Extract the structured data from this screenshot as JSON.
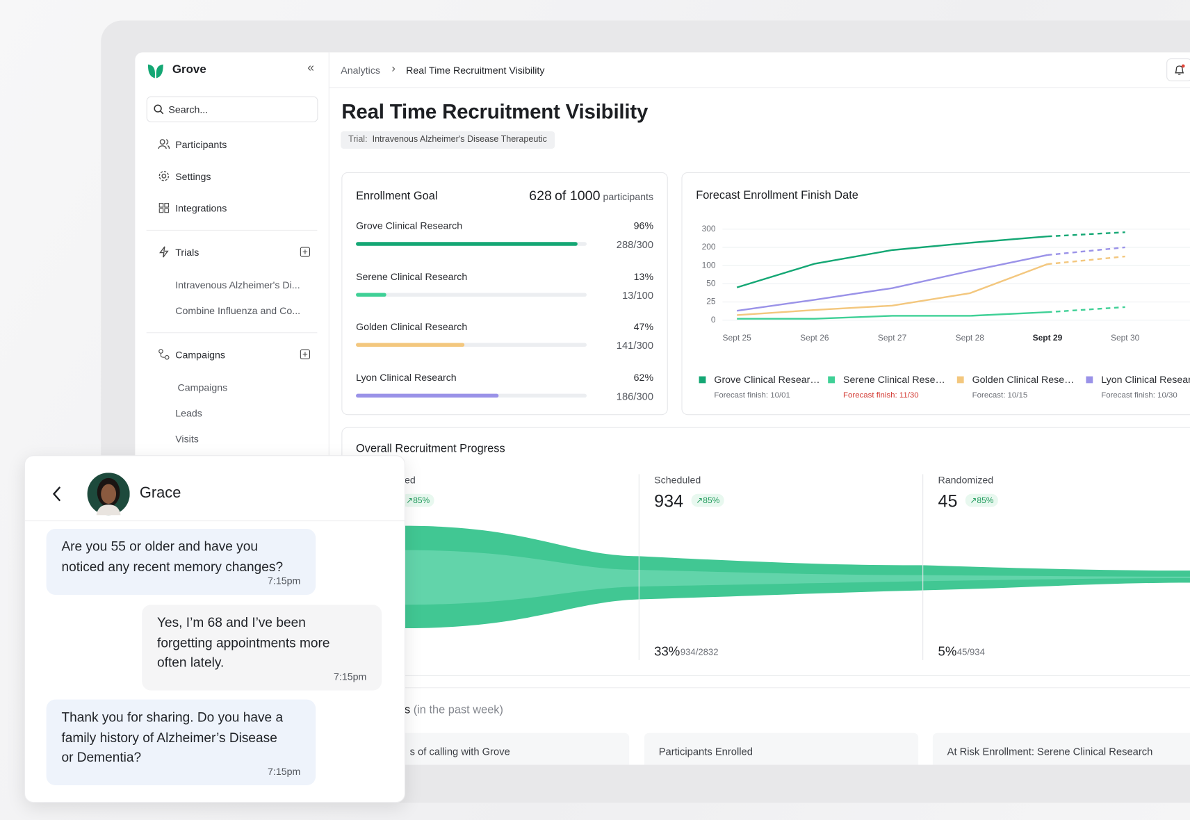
{
  "sidebar": {
    "brand": "Grove",
    "search_placeholder": "Search...",
    "nav": [
      "Participants",
      "Settings",
      "Integrations"
    ],
    "trials": {
      "label": "Trials",
      "items": [
        "Intravenous Alzheimer's Di...",
        "Combine Influenza and Co..."
      ]
    },
    "campaigns": {
      "label": "Campaigns",
      "items": [
        "Campaigns",
        "Leads",
        "Visits"
      ]
    }
  },
  "breadcrumb": [
    "Analytics",
    "Real Time Recruitment Visibility"
  ],
  "header": {
    "title": "Real Time Recruitment Visibility",
    "trial_label": "Trial:",
    "trial_name": "Intravenous Alzheimer's Disease Therapeutic"
  },
  "enrollment": {
    "title": "Enrollment Goal",
    "enrolled_label": "628",
    "goal_label": "of 1000",
    "unit": "participants",
    "sites": [
      {
        "name": "Grove Clinical Research",
        "percent": 96,
        "percent_label": "96%",
        "count_label": "288/300",
        "color": "#14a774"
      },
      {
        "name": "Serene Clinical Research",
        "percent": 13,
        "percent_label": "13%",
        "count_label": "13/100",
        "color": "#3fd096"
      },
      {
        "name": "Golden Clinical Research",
        "percent": 47,
        "percent_label": "47%",
        "count_label": "141/300",
        "color": "#f3c77e"
      },
      {
        "name": "Lyon Clinical Research",
        "percent": 62,
        "percent_label": "62%",
        "count_label": "186/300",
        "color": "#9a92e8"
      }
    ]
  },
  "forecast_chart": {
    "type": "line",
    "title": "Forecast Enrollment Finish Date",
    "categories": [
      "Sept 25",
      "Sept 26",
      "Sept 27",
      "Sept 28",
      "Sept 29",
      "Sept 30"
    ],
    "emphasized_category": "Sept 29",
    "ylim": [
      0,
      300
    ],
    "yticks": [
      0,
      25,
      50,
      100,
      200,
      300
    ],
    "scale": "tick-spaced",
    "grid": true,
    "series": [
      {
        "name": "Grove Clinical Resear…",
        "color": "#14a774",
        "values": [
          45,
          110,
          185,
          225,
          260,
          null
        ],
        "forecast": [
          null,
          null,
          null,
          null,
          260,
          283
        ],
        "note": "Forecast finish: 10/01",
        "at_risk": false
      },
      {
        "name": "Serene Clinical Rese…",
        "color": "#3fd096",
        "values": [
          2,
          2,
          6,
          6,
          11,
          null
        ],
        "forecast": [
          null,
          null,
          null,
          null,
          11,
          18
        ],
        "note": "Forecast finish: 11/30",
        "at_risk": true
      },
      {
        "name": "Golden Clinical Rese…",
        "color": "#f3c77e",
        "values": [
          7,
          14,
          20,
          37,
          108,
          null
        ],
        "forecast": [
          null,
          null,
          null,
          null,
          108,
          150
        ],
        "note": "Forecast: 10/15",
        "at_risk": false
      },
      {
        "name": "Lyon Clinical Research",
        "color": "#9a92e8",
        "values": [
          13,
          28,
          44,
          85,
          158,
          null
        ],
        "forecast": [
          null,
          null,
          null,
          null,
          158,
          200
        ],
        "note": "Forecast finish: 10/30",
        "at_risk": false
      }
    ]
  },
  "recruitment": {
    "title": "Overall Recruitment Progress",
    "stages": [
      {
        "label": "ed",
        "badge": "↗85%"
      },
      {
        "label": "Scheduled",
        "value": 934,
        "badge": "↗85%",
        "rate": "33%",
        "ratio": "934/2832"
      },
      {
        "label": "Randomized",
        "value": 45,
        "badge": "↗85%",
        "rate": "5%",
        "ratio": "45/934"
      }
    ]
  },
  "weekly": {
    "title": "s",
    "subtitle": "(in the past week)",
    "cards": [
      "s of calling with Grove",
      "Participants Enrolled",
      "At Risk Enrollment: Serene Clinical Research"
    ]
  },
  "chat": {
    "contact": "Grace",
    "messages": [
      {
        "from": "bot",
        "lines": [
          "Are you 55 or older and have you",
          "noticed any recent memory changes?"
        ],
        "time": "7:15pm"
      },
      {
        "from": "user",
        "lines": [
          "Yes, I’m 68 and I’ve been",
          "forgetting appointments more",
          "often lately."
        ],
        "time": "7:15pm"
      },
      {
        "from": "bot",
        "lines": [
          "Thank you for sharing. Do you have a",
          "family history of Alzheimer’s Disease",
          "or Dementia?"
        ],
        "time": "7:15pm"
      }
    ]
  }
}
